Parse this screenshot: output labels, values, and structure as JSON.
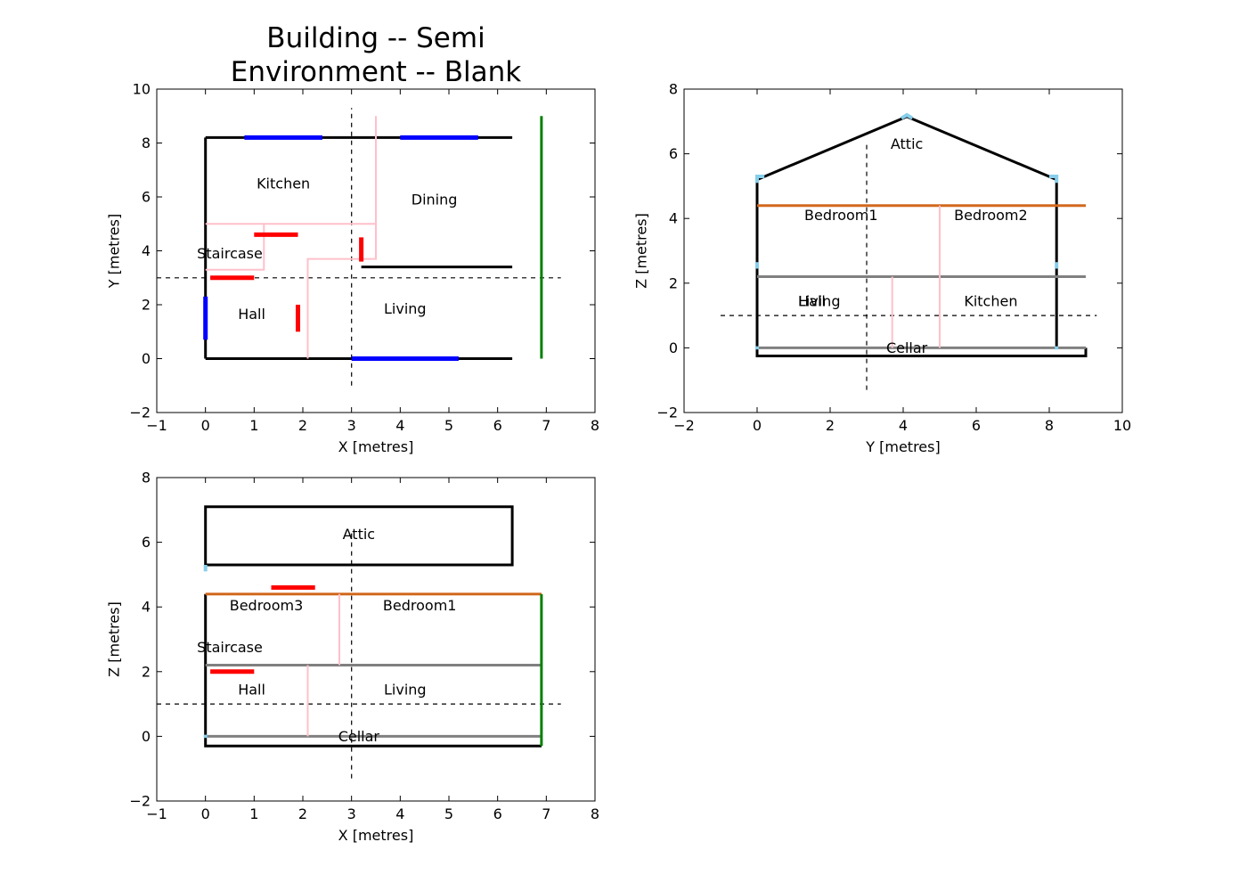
{
  "title": {
    "line1": "Building -- Semi",
    "line2": "Environment -- Blank"
  },
  "colors": {
    "wall": "#000000",
    "partition": "#ffc0cb",
    "window": "#0000ff",
    "door": "#ff0000",
    "floor": "#808080",
    "ceiling": "#d2691e",
    "boundary": "#008000",
    "vertex": "#87ceeb"
  },
  "panels": [
    {
      "id": "plan",
      "xlabel": "X [metres]",
      "ylabel": "Y [metres]",
      "xlim": [
        -1,
        8
      ],
      "ylim": [
        -2,
        10
      ],
      "xticks": [
        -1,
        0,
        1,
        2,
        3,
        4,
        5,
        6,
        7,
        8
      ],
      "yticks": [
        -2,
        0,
        2,
        4,
        6,
        8,
        10
      ],
      "segments": [
        {
          "kind": "wall",
          "pts": [
            [
              0,
              0
            ],
            [
              0,
              8.2
            ]
          ]
        },
        {
          "kind": "wall",
          "pts": [
            [
              0,
              8.2
            ],
            [
              6.3,
              8.2
            ]
          ]
        },
        {
          "kind": "wall",
          "pts": [
            [
              0,
              0
            ],
            [
              6.3,
              0
            ]
          ]
        },
        {
          "kind": "wall",
          "pts": [
            [
              3.2,
              3.4
            ],
            [
              6.3,
              3.4
            ]
          ]
        },
        {
          "kind": "partition",
          "pts": [
            [
              0,
              5
            ],
            [
              3.5,
              5
            ]
          ]
        },
        {
          "kind": "partition",
          "pts": [
            [
              3.5,
              9
            ],
            [
              3.5,
              3.7
            ],
            [
              2.1,
              3.7
            ],
            [
              2.1,
              0
            ]
          ]
        },
        {
          "kind": "partition",
          "pts": [
            [
              1.2,
              5
            ],
            [
              1.2,
              3.3
            ],
            [
              0,
              3.3
            ]
          ]
        },
        {
          "kind": "window",
          "pts": [
            [
              0.8,
              8.2
            ],
            [
              2.4,
              8.2
            ]
          ]
        },
        {
          "kind": "window",
          "pts": [
            [
              4,
              8.2
            ],
            [
              5.6,
              8.2
            ]
          ]
        },
        {
          "kind": "window",
          "pts": [
            [
              3,
              0
            ],
            [
              5.2,
              0
            ]
          ]
        },
        {
          "kind": "window",
          "pts": [
            [
              0,
              0.7
            ],
            [
              0,
              2.3
            ]
          ]
        },
        {
          "kind": "door",
          "pts": [
            [
              1,
              4.6
            ],
            [
              1.9,
              4.6
            ]
          ]
        },
        {
          "kind": "door",
          "pts": [
            [
              3.2,
              3.6
            ],
            [
              3.2,
              4.5
            ]
          ]
        },
        {
          "kind": "door",
          "pts": [
            [
              0.1,
              3
            ],
            [
              1,
              3
            ]
          ]
        },
        {
          "kind": "door",
          "pts": [
            [
              1.9,
              1
            ],
            [
              1.9,
              2
            ]
          ]
        },
        {
          "kind": "boundary",
          "pts": [
            [
              6.9,
              0
            ],
            [
              6.9,
              9
            ]
          ]
        },
        {
          "kind": "section",
          "pts": [
            [
              -1,
              3
            ],
            [
              7.3,
              3
            ]
          ]
        },
        {
          "kind": "section",
          "pts": [
            [
              3,
              -1
            ],
            [
              3,
              9.3
            ]
          ]
        }
      ],
      "rooms": [
        {
          "name": "Kitchen",
          "x": 1.6,
          "y": 6.5
        },
        {
          "name": "Dining",
          "x": 4.7,
          "y": 5.9
        },
        {
          "name": "Staircase",
          "x": 0.5,
          "y": 3.9
        },
        {
          "name": "Hall",
          "x": 0.95,
          "y": 1.65
        },
        {
          "name": "Living",
          "x": 4.1,
          "y": 1.85
        }
      ]
    },
    {
      "id": "section-y",
      "xlabel": "Y [metres]",
      "ylabel": "Z [metres]",
      "xlim": [
        -2,
        10
      ],
      "ylim": [
        -2,
        8
      ],
      "xticks": [
        -2,
        0,
        2,
        4,
        6,
        8,
        10
      ],
      "yticks": [
        -2,
        0,
        2,
        4,
        6,
        8
      ],
      "segments": [
        {
          "kind": "wall",
          "pts": [
            [
              0,
              5.2
            ],
            [
              0,
              -0.25
            ],
            [
              9,
              -0.25
            ],
            [
              9,
              0
            ]
          ]
        },
        {
          "kind": "wall",
          "pts": [
            [
              8.2,
              0
            ],
            [
              8.2,
              5.2
            ]
          ]
        },
        {
          "kind": "wall",
          "pts": [
            [
              0,
              5.2
            ],
            [
              4.1,
              7.15
            ],
            [
              8.2,
              5.2
            ]
          ]
        },
        {
          "kind": "floor",
          "pts": [
            [
              0,
              0
            ],
            [
              9,
              0
            ]
          ]
        },
        {
          "kind": "floor",
          "pts": [
            [
              0,
              2.2
            ],
            [
              9,
              2.2
            ]
          ]
        },
        {
          "kind": "ceiling",
          "pts": [
            [
              0,
              4.4
            ],
            [
              9,
              4.4
            ]
          ]
        },
        {
          "kind": "partition",
          "pts": [
            [
              3.7,
              0
            ],
            [
              3.7,
              2.2
            ]
          ]
        },
        {
          "kind": "partition",
          "pts": [
            [
              5,
              0
            ],
            [
              5,
              4.4
            ]
          ]
        },
        {
          "kind": "vertex",
          "pts": [
            [
              0,
              5.1
            ],
            [
              0,
              5.3
            ],
            [
              0.2,
              5.3
            ]
          ]
        },
        {
          "kind": "vertex",
          "pts": [
            [
              3.95,
              7.1
            ],
            [
              4.1,
              7.2
            ],
            [
              4.25,
              7.1
            ]
          ]
        },
        {
          "kind": "vertex",
          "pts": [
            [
              8,
              5.3
            ],
            [
              8.2,
              5.3
            ],
            [
              8.2,
              5.1
            ]
          ]
        },
        {
          "kind": "vertex",
          "pts": [
            [
              0,
              2.45
            ],
            [
              0,
              2.65
            ]
          ]
        },
        {
          "kind": "vertex",
          "pts": [
            [
              8.2,
              2.45
            ],
            [
              8.2,
              2.65
            ]
          ]
        },
        {
          "kind": "vertex",
          "pts": [
            [
              0,
              -0.05
            ],
            [
              0,
              0.05
            ]
          ]
        },
        {
          "kind": "vertex",
          "pts": [
            [
              8.2,
              -0.05
            ],
            [
              8.2,
              0.05
            ]
          ]
        },
        {
          "kind": "section",
          "pts": [
            [
              -1,
              1
            ],
            [
              9.3,
              1
            ]
          ]
        },
        {
          "kind": "section",
          "pts": [
            [
              3,
              -1.3
            ],
            [
              3,
              6.3
            ]
          ]
        }
      ],
      "rooms": [
        {
          "name": "Attic",
          "x": 4.1,
          "y": 6.3
        },
        {
          "name": "Bedroom1",
          "x": 2.3,
          "y": 4.1
        },
        {
          "name": "Bedroom2",
          "x": 6.4,
          "y": 4.1
        },
        {
          "name": "Hall",
          "x": 1.5,
          "y": 1.45
        },
        {
          "name": "Living",
          "x": 1.7,
          "y": 1.45
        },
        {
          "name": "Kitchen",
          "x": 6.4,
          "y": 1.45
        },
        {
          "name": "Cellar",
          "x": 4.1,
          "y": 0
        }
      ]
    },
    {
      "id": "section-x",
      "xlabel": "X [metres]",
      "ylabel": "Z [metres]",
      "xlim": [
        -1,
        8
      ],
      "ylim": [
        -2,
        8
      ],
      "xticks": [
        -1,
        0,
        1,
        2,
        3,
        4,
        5,
        6,
        7,
        8
      ],
      "yticks": [
        -2,
        0,
        2,
        4,
        6,
        8
      ],
      "segments": [
        {
          "kind": "wall",
          "pts": [
            [
              0,
              5.3
            ],
            [
              0,
              7.1
            ],
            [
              6.3,
              7.1
            ],
            [
              6.3,
              5.3
            ],
            [
              0,
              5.3
            ]
          ]
        },
        {
          "kind": "wall",
          "pts": [
            [
              0,
              4.4
            ],
            [
              0,
              -0.3
            ],
            [
              6.9,
              -0.3
            ]
          ]
        },
        {
          "kind": "floor",
          "pts": [
            [
              0,
              0
            ],
            [
              6.9,
              0
            ]
          ]
        },
        {
          "kind": "floor",
          "pts": [
            [
              0,
              2.2
            ],
            [
              6.9,
              2.2
            ]
          ]
        },
        {
          "kind": "ceiling",
          "pts": [
            [
              0,
              4.4
            ],
            [
              6.9,
              4.4
            ]
          ]
        },
        {
          "kind": "boundary",
          "pts": [
            [
              6.9,
              -0.3
            ],
            [
              6.9,
              4.4
            ]
          ]
        },
        {
          "kind": "partition",
          "pts": [
            [
              2.75,
              2.2
            ],
            [
              2.75,
              4.4
            ]
          ]
        },
        {
          "kind": "partition",
          "pts": [
            [
              2.1,
              0
            ],
            [
              2.1,
              2.2
            ]
          ]
        },
        {
          "kind": "door",
          "pts": [
            [
              1.35,
              4.6
            ],
            [
              2.25,
              4.6
            ]
          ]
        },
        {
          "kind": "door",
          "pts": [
            [
              0.1,
              2
            ],
            [
              1,
              2
            ]
          ]
        },
        {
          "kind": "vertex",
          "pts": [
            [
              0,
              5.1
            ],
            [
              0,
              5.3
            ]
          ]
        },
        {
          "kind": "vertex",
          "pts": [
            [
              0,
              -0.05
            ],
            [
              0,
              0.05
            ]
          ]
        },
        {
          "kind": "section",
          "pts": [
            [
              -1,
              1
            ],
            [
              7.3,
              1
            ]
          ]
        },
        {
          "kind": "section",
          "pts": [
            [
              3,
              -1.3
            ],
            [
              3,
              6.3
            ]
          ]
        }
      ],
      "rooms": [
        {
          "name": "Attic",
          "x": 3.15,
          "y": 6.25
        },
        {
          "name": "Bedroom3",
          "x": 1.25,
          "y": 4.05
        },
        {
          "name": "Bedroom1",
          "x": 4.4,
          "y": 4.05
        },
        {
          "name": "Staircase",
          "x": 0.5,
          "y": 2.75
        },
        {
          "name": "Hall",
          "x": 0.95,
          "y": 1.45
        },
        {
          "name": "Living",
          "x": 4.1,
          "y": 1.45
        },
        {
          "name": "Cellar",
          "x": 3.15,
          "y": 0
        }
      ]
    }
  ]
}
